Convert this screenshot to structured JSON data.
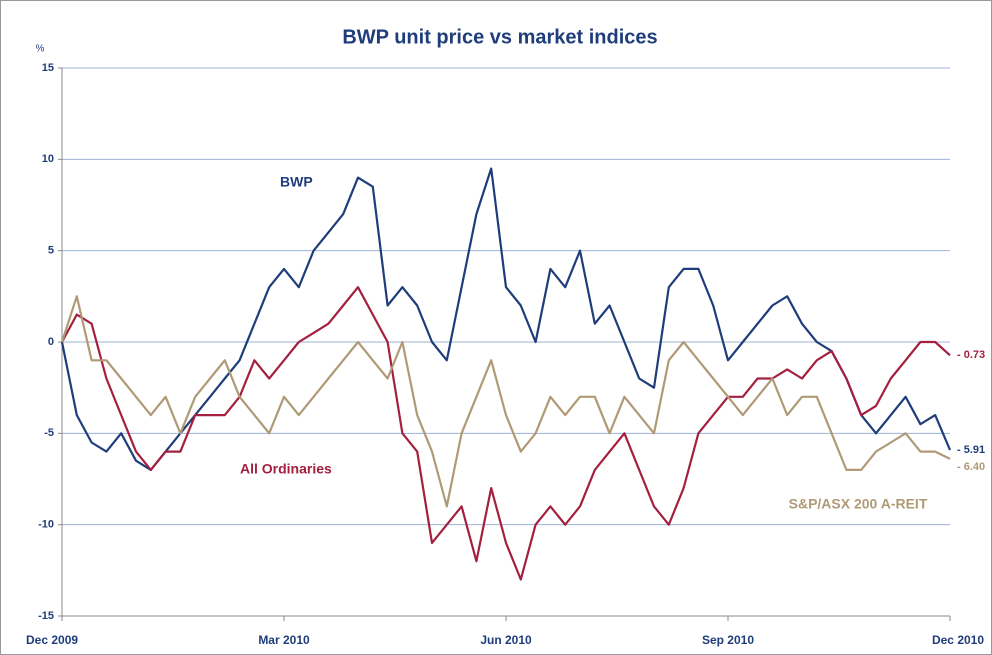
{
  "chart_data": {
    "type": "line",
    "title": "BWP unit price vs market indices",
    "y_label": "%",
    "categories": [
      "Dec 2009",
      null,
      null,
      null,
      null,
      null,
      null,
      null,
      null,
      null,
      null,
      null,
      null,
      null,
      null,
      "Mar 2010",
      null,
      null,
      null,
      null,
      null,
      null,
      null,
      null,
      null,
      null,
      null,
      null,
      null,
      null,
      "Jun 2010",
      null,
      null,
      null,
      null,
      null,
      null,
      null,
      null,
      null,
      null,
      null,
      null,
      null,
      null,
      "Sep 2010",
      null,
      null,
      null,
      null,
      null,
      null,
      null,
      null,
      null,
      null,
      null,
      null,
      null,
      null,
      "Dec 2010"
    ],
    "ylim": [
      -15,
      15
    ],
    "yticks": [
      -15,
      -10,
      -5,
      0,
      5,
      10,
      15
    ],
    "grid": true,
    "series": [
      {
        "name": "BWP",
        "color": "#1f3d7a",
        "values": [
          0,
          -4,
          -5.5,
          -6,
          -5,
          -6.5,
          -7,
          -6,
          -5,
          -4,
          -3,
          -2,
          -1,
          1,
          3,
          4,
          3,
          5,
          6,
          7,
          9,
          8.5,
          2,
          3,
          2,
          0,
          -1,
          3,
          7,
          9.5,
          3,
          2,
          0,
          4,
          3,
          5,
          1,
          2,
          0,
          -2,
          -2.5,
          3,
          4,
          4,
          2,
          -1,
          0,
          1,
          2,
          2.5,
          1,
          0,
          -0.5,
          -2,
          -4,
          -5,
          -4,
          -3,
          -4.5,
          -4,
          -5.91
        ],
        "value_labels": [
          null,
          null,
          null,
          null,
          null,
          null,
          null,
          null,
          null,
          null,
          null,
          null,
          null,
          null,
          null,
          null,
          null,
          null,
          null,
          null,
          null,
          null,
          null,
          null,
          null,
          null,
          null,
          null,
          null,
          null,
          null,
          null,
          null,
          null,
          null,
          null,
          null,
          null,
          null,
          null,
          null,
          null,
          null,
          null,
          null,
          null,
          null,
          null,
          null,
          null,
          null,
          null,
          null,
          null,
          null,
          null,
          null,
          null,
          null,
          null,
          "- 5.91"
        ]
      },
      {
        "name": "All Ordinaries",
        "color": "#a3203f",
        "values": [
          0,
          1.5,
          1,
          -2,
          -4,
          -6,
          -7,
          -6,
          -6,
          -4,
          -4,
          -4,
          -3,
          -1,
          -2,
          -1,
          0,
          0.5,
          1,
          2,
          3,
          1.5,
          0,
          -5,
          -6,
          -11,
          -10,
          -9,
          -12,
          -8,
          -11,
          -13,
          -10,
          -9,
          -10,
          -9,
          -7,
          -6,
          -5,
          -7,
          -9,
          -10,
          -8,
          -5,
          -4,
          -3,
          -3,
          -2,
          -2,
          -1.5,
          -2,
          -1,
          -0.5,
          -2,
          -4,
          -3.5,
          -2,
          -1,
          0,
          0,
          -0.73
        ],
        "value_labels": [
          null,
          null,
          null,
          null,
          null,
          null,
          null,
          null,
          null,
          null,
          null,
          null,
          null,
          null,
          null,
          null,
          null,
          null,
          null,
          null,
          null,
          null,
          null,
          null,
          null,
          null,
          null,
          null,
          null,
          null,
          null,
          null,
          null,
          null,
          null,
          null,
          null,
          null,
          null,
          null,
          null,
          null,
          null,
          null,
          null,
          null,
          null,
          null,
          null,
          null,
          null,
          null,
          null,
          null,
          null,
          null,
          null,
          null,
          null,
          null,
          "- 0.73"
        ]
      },
      {
        "name": "S&P/ASX 200 A-REIT",
        "color": "#b09a76",
        "values": [
          0,
          2.5,
          -1,
          -1,
          -2,
          -3,
          -4,
          -3,
          -5,
          -3,
          -2,
          -1,
          -3,
          -4,
          -5,
          -3,
          -4,
          -3,
          -2,
          -1,
          0,
          -1,
          -2,
          0,
          -4,
          -6,
          -9,
          -5,
          -3,
          -1,
          -4,
          -6,
          -5,
          -3,
          -4,
          -3,
          -3,
          -5,
          -3,
          -4,
          -5,
          -1,
          0,
          -1,
          -2,
          -3,
          -4,
          -3,
          -2,
          -4,
          -3,
          -3,
          -5,
          -7,
          -7,
          -6,
          -5.5,
          -5,
          -6,
          -6,
          -6.4
        ],
        "value_labels": [
          null,
          null,
          null,
          null,
          null,
          null,
          null,
          null,
          null,
          null,
          null,
          null,
          null,
          null,
          null,
          null,
          null,
          null,
          null,
          null,
          null,
          null,
          null,
          null,
          null,
          null,
          null,
          null,
          null,
          null,
          null,
          null,
          null,
          null,
          null,
          null,
          null,
          null,
          null,
          null,
          null,
          null,
          null,
          null,
          null,
          null,
          null,
          null,
          null,
          null,
          null,
          null,
          null,
          null,
          null,
          null,
          null,
          null,
          null,
          null,
          "- 6.40"
        ]
      }
    ]
  }
}
